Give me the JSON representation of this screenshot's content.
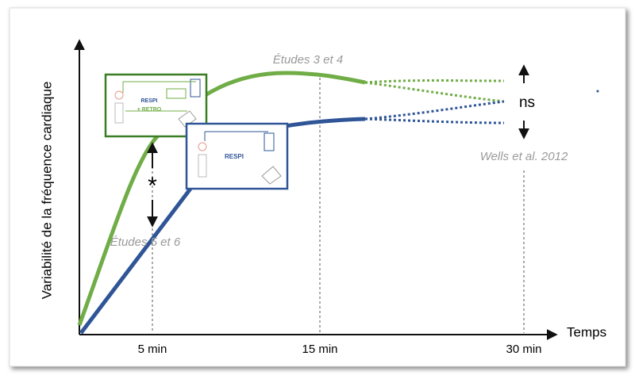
{
  "axes": {
    "y_label": "Variabilité de la fréquence cardiaque",
    "x_label": "Temps",
    "x_ticks": [
      "5 min",
      "15 min",
      "30 min"
    ]
  },
  "annotations": {
    "top": "Études 3 et 4",
    "bottom": "Études 5 et 6",
    "reference": "Wells et al. 2012",
    "ns": "ns",
    "significance": "*"
  },
  "boxes": {
    "green": {
      "label": "RESPI",
      "sublabel": "+ RETRO"
    },
    "blue": {
      "label": "RESPI"
    }
  }
}
